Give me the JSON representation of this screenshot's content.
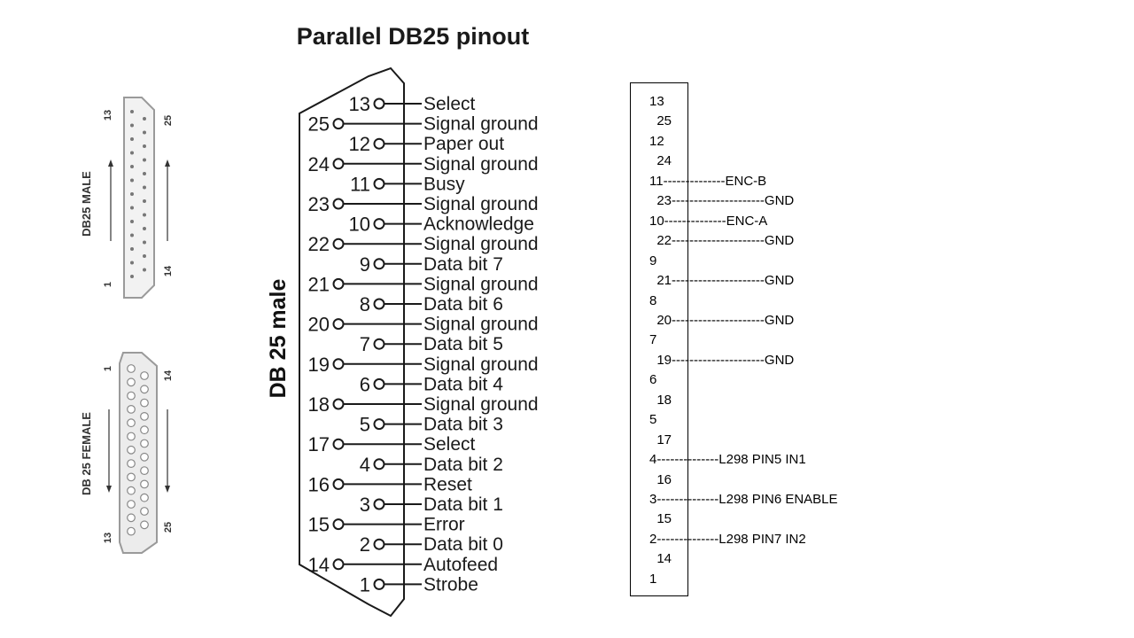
{
  "title": "Parallel DB25 pinout",
  "male_connector": {
    "label": "DB25 MALE",
    "num_top_left": "13",
    "num_top_right": "25",
    "num_bottom_left": "1",
    "num_bottom_right": "14"
  },
  "female_connector": {
    "label": "DB 25 FEMALE",
    "num_top_left": "1",
    "num_top_right": "14",
    "num_bottom_left": "13",
    "num_bottom_right": "25"
  },
  "side_label": "DB 25 male",
  "pins": [
    {
      "num": "13",
      "label": "Select"
    },
    {
      "num": "25",
      "label": "Signal ground"
    },
    {
      "num": "12",
      "label": "Paper out"
    },
    {
      "num": "24",
      "label": "Signal ground"
    },
    {
      "num": "11",
      "label": "Busy"
    },
    {
      "num": "23",
      "label": "Signal ground"
    },
    {
      "num": "10",
      "label": "Acknowledge"
    },
    {
      "num": "22",
      "label": "Signal ground"
    },
    {
      "num": "9",
      "label": "Data bit 7"
    },
    {
      "num": "21",
      "label": "Signal ground"
    },
    {
      "num": "8",
      "label": "Data bit 6"
    },
    {
      "num": "20",
      "label": "Signal ground"
    },
    {
      "num": "7",
      "label": "Data bit 5"
    },
    {
      "num": "19",
      "label": "Signal ground"
    },
    {
      "num": "6",
      "label": "Data bit 4"
    },
    {
      "num": "18",
      "label": "Signal ground"
    },
    {
      "num": "5",
      "label": "Data bit 3"
    },
    {
      "num": "17",
      "label": "Select"
    },
    {
      "num": "4",
      "label": "Data bit 2"
    },
    {
      "num": "16",
      "label": "Reset"
    },
    {
      "num": "3",
      "label": "Data bit 1"
    },
    {
      "num": "15",
      "label": "Error"
    },
    {
      "num": "2",
      "label": "Data bit 0"
    },
    {
      "num": "14",
      "label": "Autofeed"
    },
    {
      "num": "1",
      "label": "Strobe"
    }
  ],
  "wiring": [
    {
      "text": "13"
    },
    {
      "text": "  25"
    },
    {
      "text": "12"
    },
    {
      "text": "  24"
    },
    {
      "text": "11--------------ENC-B"
    },
    {
      "text": "  23---------------------GND"
    },
    {
      "text": "10--------------ENC-A"
    },
    {
      "text": "  22---------------------GND"
    },
    {
      "text": "9"
    },
    {
      "text": "  21---------------------GND"
    },
    {
      "text": "8"
    },
    {
      "text": "  20---------------------GND"
    },
    {
      "text": "7"
    },
    {
      "text": "  19---------------------GND"
    },
    {
      "text": "6"
    },
    {
      "text": "  18"
    },
    {
      "text": "5"
    },
    {
      "text": "  17"
    },
    {
      "text": "4--------------L298 PIN5 IN1"
    },
    {
      "text": "  16"
    },
    {
      "text": "3--------------L298 PIN6 ENABLE"
    },
    {
      "text": "  15"
    },
    {
      "text": "2--------------L298 PIN7 IN2"
    },
    {
      "text": "  14"
    },
    {
      "text": "1"
    }
  ]
}
